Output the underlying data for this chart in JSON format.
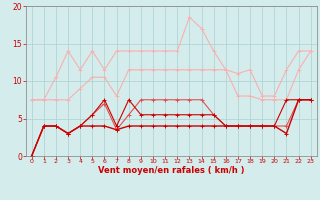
{
  "x": [
    0,
    1,
    2,
    3,
    4,
    5,
    6,
    7,
    8,
    9,
    10,
    11,
    12,
    13,
    14,
    15,
    16,
    17,
    18,
    19,
    20,
    21,
    22,
    23
  ],
  "series": [
    {
      "name": "max_gust_upper",
      "color": "#f8b0b0",
      "linewidth": 0.8,
      "marker": "+",
      "markersize": 3,
      "markeredgewidth": 0.7,
      "values": [
        7.5,
        7.5,
        10.5,
        14.0,
        11.5,
        14.0,
        11.5,
        14.0,
        14.0,
        14.0,
        14.0,
        14.0,
        14.0,
        18.5,
        17.0,
        14.0,
        11.5,
        11.0,
        11.5,
        8.0,
        8.0,
        11.5,
        14.0,
        14.0
      ]
    },
    {
      "name": "avg_upper",
      "color": "#f8b0b0",
      "linewidth": 0.8,
      "marker": "+",
      "markersize": 3,
      "markeredgewidth": 0.7,
      "values": [
        7.5,
        7.5,
        7.5,
        7.5,
        9.0,
        10.5,
        10.5,
        8.0,
        11.5,
        11.5,
        11.5,
        11.5,
        11.5,
        11.5,
        11.5,
        11.5,
        11.5,
        8.0,
        8.0,
        7.5,
        7.5,
        7.5,
        11.5,
        14.0
      ]
    },
    {
      "name": "avg_mid",
      "color": "#e05050",
      "linewidth": 0.8,
      "marker": "+",
      "markersize": 3,
      "markeredgewidth": 0.7,
      "values": [
        0.0,
        4.0,
        4.0,
        3.0,
        4.0,
        5.5,
        7.0,
        3.5,
        5.5,
        7.5,
        7.5,
        7.5,
        7.5,
        7.5,
        7.5,
        5.5,
        4.0,
        4.0,
        4.0,
        4.0,
        4.0,
        4.0,
        7.5,
        7.5
      ]
    },
    {
      "name": "avg_low",
      "color": "#cc0000",
      "linewidth": 1.0,
      "marker": "+",
      "markersize": 3,
      "markeredgewidth": 0.7,
      "values": [
        0.0,
        4.0,
        4.0,
        3.0,
        4.0,
        4.0,
        4.0,
        3.5,
        4.0,
        4.0,
        4.0,
        4.0,
        4.0,
        4.0,
        4.0,
        4.0,
        4.0,
        4.0,
        4.0,
        4.0,
        4.0,
        3.0,
        7.5,
        7.5
      ]
    },
    {
      "name": "min_low",
      "color": "#cc0000",
      "linewidth": 0.8,
      "marker": "+",
      "markersize": 3,
      "markeredgewidth": 0.7,
      "values": [
        0.0,
        4.0,
        4.0,
        3.0,
        4.0,
        5.5,
        7.5,
        4.0,
        7.5,
        5.5,
        5.5,
        5.5,
        5.5,
        5.5,
        5.5,
        5.5,
        4.0,
        4.0,
        4.0,
        4.0,
        4.0,
        7.5,
        7.5,
        7.5
      ]
    }
  ],
  "xlabel": "Vent moyen/en rafales ( km/h )",
  "xlim": [
    -0.5,
    23.5
  ],
  "ylim": [
    0,
    20
  ],
  "yticks": [
    0,
    5,
    10,
    15,
    20
  ],
  "xticks": [
    0,
    1,
    2,
    3,
    4,
    5,
    6,
    7,
    8,
    9,
    10,
    11,
    12,
    13,
    14,
    15,
    16,
    17,
    18,
    19,
    20,
    21,
    22,
    23
  ],
  "background_color": "#d4ecec",
  "grid_color": "#aad0d0",
  "tick_label_color": "#cc0000",
  "xlabel_color": "#cc0000",
  "figsize": [
    3.2,
    2.0
  ],
  "dpi": 100
}
